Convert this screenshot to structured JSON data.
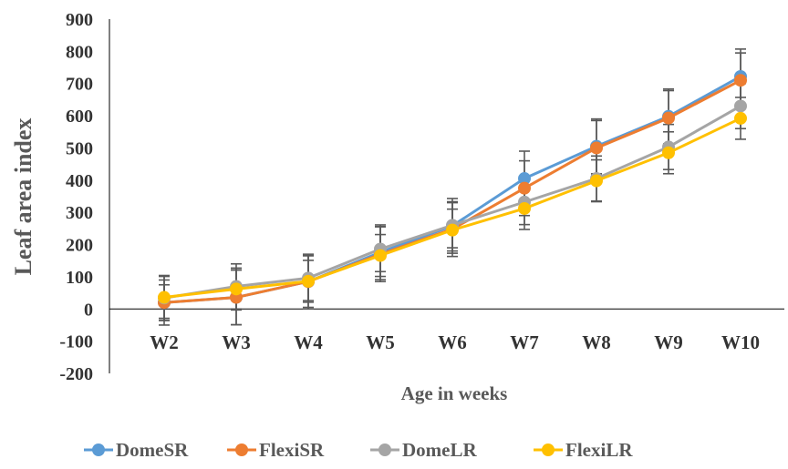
{
  "chart_data": {
    "type": "line",
    "title": "",
    "xlabel": "Age in weeks",
    "ylabel": "Leaf area index",
    "ylim": [
      -200,
      900
    ],
    "ytick_step": 100,
    "y_ticks": [
      "900",
      "800",
      "700",
      "600",
      "500",
      "400",
      "300",
      "200",
      "100",
      "0",
      "-100",
      "-200"
    ],
    "categories": [
      "W2",
      "W3",
      "W4",
      "W5",
      "W6",
      "W7",
      "W8",
      "W9",
      "W10"
    ],
    "grid": false,
    "legend": "bottom",
    "error_bars": true,
    "series": [
      {
        "name": "DomeSR",
        "color": "#5B9BD5",
        "values": [
          20,
          36,
          85,
          176,
          258,
          405,
          505,
          598,
          722
        ],
        "error": [
          70,
          85,
          85,
          85,
          85,
          85,
          85,
          85,
          85
        ]
      },
      {
        "name": "FlexiSR",
        "color": "#ED7D31",
        "values": [
          20,
          36,
          85,
          170,
          248,
          375,
          500,
          593,
          710
        ],
        "error": [
          55,
          85,
          80,
          85,
          85,
          85,
          85,
          85,
          85
        ]
      },
      {
        "name": "DomeLR",
        "color": "#A5A5A5",
        "values": [
          34,
          70,
          96,
          186,
          260,
          332,
          405,
          503,
          630
        ],
        "error": [
          70,
          70,
          70,
          70,
          70,
          70,
          70,
          70,
          70
        ]
      },
      {
        "name": "FlexiLR",
        "color": "#FFC000",
        "values": [
          36,
          62,
          86,
          166,
          245,
          312,
          398,
          485,
          592
        ],
        "error": [
          65,
          65,
          65,
          65,
          65,
          65,
          65,
          65,
          65
        ]
      }
    ]
  }
}
